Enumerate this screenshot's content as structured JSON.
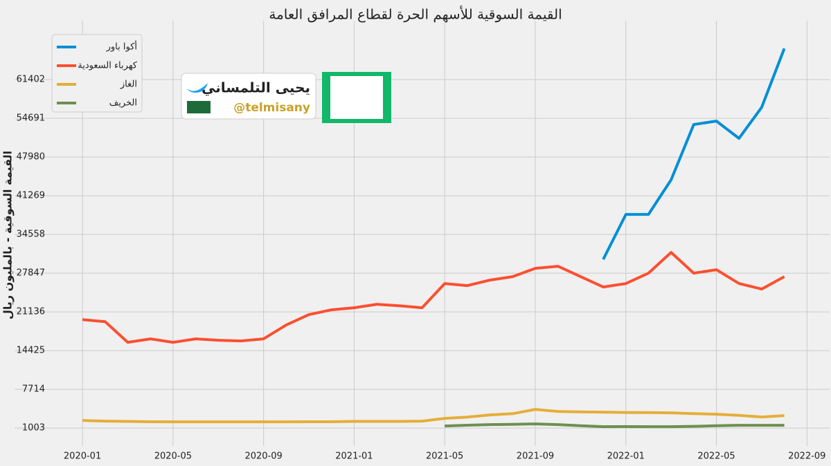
{
  "chart_data": {
    "type": "line",
    "title": "القيمة السوقية للأسهم الحرة لقطاع المرافق العامة",
    "ylabel": "القيمة السوقية - بالمليون ريال",
    "annotations": [
      "يحيى التلمساني",
      "@telmisany"
    ],
    "x": [
      "2020-01",
      "2020-02",
      "2020-03",
      "2020-04",
      "2020-05",
      "2020-06",
      "2020-07",
      "2020-08",
      "2020-09",
      "2020-10",
      "2020-11",
      "2020-12",
      "2021-01",
      "2021-02",
      "2021-03",
      "2021-04",
      "2021-05",
      "2021-06",
      "2021-07",
      "2021-08",
      "2021-09",
      "2021-10",
      "2021-11",
      "2021-12",
      "2022-01",
      "2022-02",
      "2022-03",
      "2022-04",
      "2022-05",
      "2022-06",
      "2022-07",
      "2022-08"
    ],
    "series": [
      {
        "name": "أكوا باور",
        "color": "#008fd5",
        "values": [
          null,
          null,
          null,
          null,
          null,
          null,
          null,
          null,
          null,
          null,
          null,
          null,
          null,
          null,
          null,
          null,
          null,
          null,
          null,
          null,
          null,
          null,
          null,
          30240,
          38030,
          38030,
          44020,
          53610,
          54210,
          51210,
          56600,
          66790
        ]
      },
      {
        "name": "كهرباء السعودية",
        "color": "#fc4f30",
        "values": [
          19800,
          19450,
          15860,
          16460,
          15860,
          16460,
          16220,
          16100,
          16460,
          18860,
          20660,
          21500,
          21850,
          22450,
          22200,
          21850,
          26050,
          25690,
          26650,
          27250,
          28690,
          29050,
          27250,
          25450,
          26050,
          27850,
          31440,
          27850,
          28450,
          26050,
          25090,
          27250
        ]
      },
      {
        "name": "الغاز",
        "color": "#e5ae38",
        "values": [
          2320,
          2200,
          2150,
          2100,
          2080,
          2080,
          2080,
          2080,
          2080,
          2080,
          2100,
          2100,
          2150,
          2150,
          2150,
          2200,
          2680,
          2900,
          3280,
          3500,
          4240,
          3880,
          3800,
          3760,
          3700,
          3680,
          3640,
          3500,
          3400,
          3200,
          2920,
          3160
        ]
      },
      {
        "name": "الخريف",
        "color": "#6d904f",
        "values": [
          null,
          null,
          null,
          null,
          null,
          null,
          null,
          null,
          null,
          null,
          null,
          null,
          null,
          null,
          null,
          null,
          1360,
          1500,
          1600,
          1650,
          1720,
          1600,
          1400,
          1240,
          1250,
          1240,
          1240,
          1300,
          1400,
          1480,
          1480,
          1480
        ]
      }
    ],
    "xlim": [
      "2019-10",
      "2022-10"
    ],
    "xticks": [
      "2020-01",
      "2020-05",
      "2020-09",
      "2021-01",
      "2021-05",
      "2021-09",
      "2022-01",
      "2022-05",
      "2022-09"
    ],
    "ylim": [
      -2100,
      71600
    ],
    "yticks": [
      1003,
      7714,
      14425,
      21136,
      27847,
      34558,
      41269,
      47980,
      54691,
      61402
    ],
    "grid": true,
    "legend": "upper left"
  }
}
